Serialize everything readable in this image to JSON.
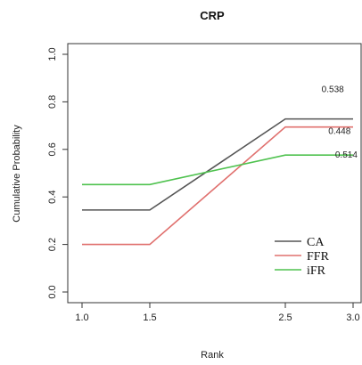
{
  "chart_data": {
    "type": "line",
    "title": "CRP",
    "xlabel": "Rank",
    "ylabel": "Cumulative Probability",
    "x": [
      1.0,
      1.5,
      2.5,
      3.0
    ],
    "xlim": [
      1.0,
      3.0
    ],
    "ylim": [
      0.0,
      1.0
    ],
    "x_ticks": [
      "1.0",
      "1.5",
      "2.5",
      "3.0"
    ],
    "y_ticks": [
      "0.0",
      "0.2",
      "0.4",
      "0.6",
      "0.8",
      "1.0"
    ],
    "grid": false,
    "legend_position": "bottom-right",
    "series": [
      {
        "name": "CA",
        "color": "#555555",
        "values": [
          0.345,
          0.345,
          0.728,
          0.728
        ]
      },
      {
        "name": "FFR",
        "color": "#e0706e",
        "values": [
          0.2,
          0.2,
          0.694,
          0.694
        ]
      },
      {
        "name": "iFR",
        "color": "#4fc24f",
        "values": [
          0.452,
          0.452,
          0.576,
          0.576
        ]
      }
    ],
    "annotations": [
      {
        "text": "0.538",
        "x": 2.85,
        "y": 0.84
      },
      {
        "text": "0.448",
        "x": 2.9,
        "y": 0.665
      },
      {
        "text": "0.514",
        "x": 2.95,
        "y": 0.565
      }
    ]
  }
}
